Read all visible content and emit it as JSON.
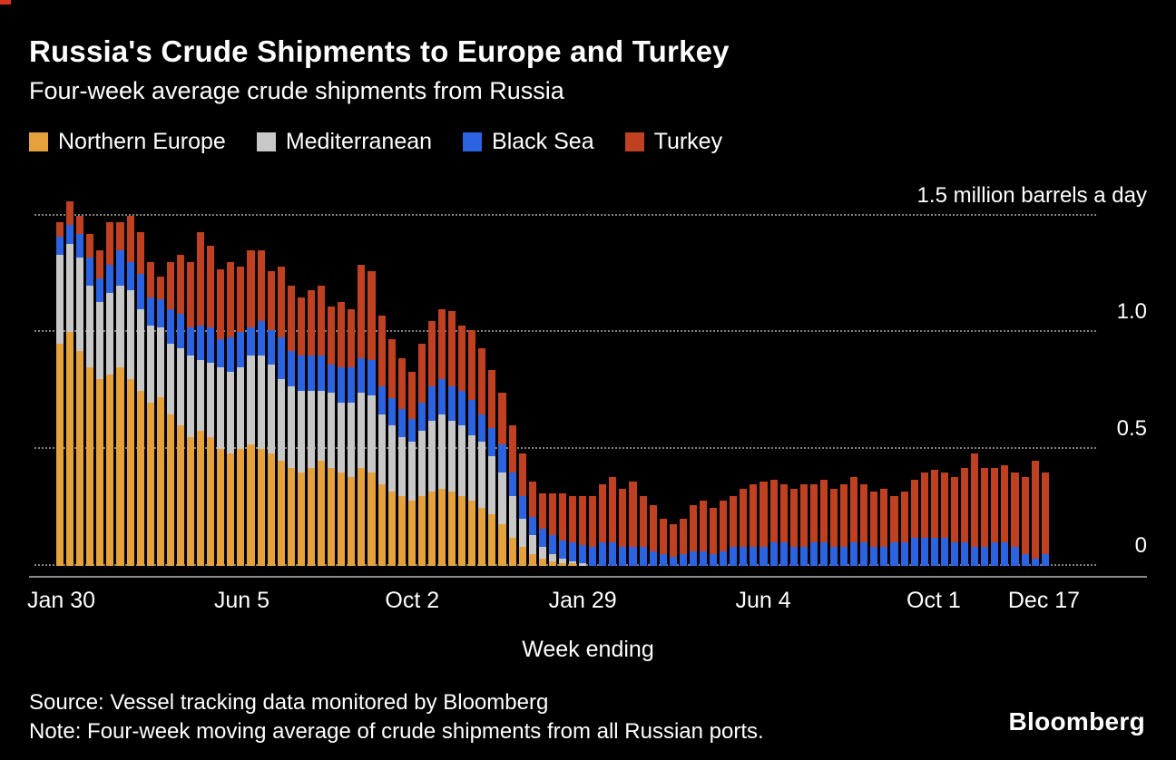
{
  "accent_color": "#d6361f",
  "header": {
    "title": "Russia's Crude Shipments to Europe and Turkey",
    "subtitle": "Four-week average crude shipments from Russia"
  },
  "legend": [
    {
      "label": "Northern Europe",
      "color": "#e5a23c"
    },
    {
      "label": "Mediterranean",
      "color": "#c8c8c8"
    },
    {
      "label": "Black Sea",
      "color": "#2b63e0"
    },
    {
      "label": "Turkey",
      "color": "#c04122"
    }
  ],
  "chart_data": {
    "type": "bar",
    "stacked": true,
    "title": "Russia's Crude Shipments to Europe and Turkey",
    "subtitle": "Four-week average crude shipments from Russia",
    "xlabel": "Week ending",
    "ylabel": "million barrels a day",
    "ylim": [
      0,
      1.65
    ],
    "grid": "dotted-horizontal",
    "legend_position": "top",
    "y_ticks": [
      {
        "value": 1.5,
        "label": "1.5 million barrels a day"
      },
      {
        "value": 1.0,
        "label": "1.0"
      },
      {
        "value": 0.5,
        "label": "0.5"
      },
      {
        "value": 0,
        "label": "0"
      }
    ],
    "x_ticks": [
      {
        "index": 0,
        "label": "Jan 30"
      },
      {
        "index": 18,
        "label": "Jun 5"
      },
      {
        "index": 35,
        "label": "Oct 2"
      },
      {
        "index": 52,
        "label": "Jan 29"
      },
      {
        "index": 70,
        "label": "Jun 4"
      },
      {
        "index": 87,
        "label": "Oct 1"
      },
      {
        "index": 98,
        "label": "Dec 17"
      }
    ],
    "series": [
      {
        "name": "Northern Europe",
        "color": "#e5a23c",
        "values": [
          0.95,
          1.0,
          0.92,
          0.85,
          0.8,
          0.82,
          0.85,
          0.8,
          0.75,
          0.7,
          0.72,
          0.65,
          0.6,
          0.55,
          0.58,
          0.55,
          0.5,
          0.48,
          0.5,
          0.52,
          0.5,
          0.48,
          0.45,
          0.42,
          0.4,
          0.42,
          0.45,
          0.42,
          0.4,
          0.38,
          0.42,
          0.4,
          0.35,
          0.32,
          0.3,
          0.28,
          0.3,
          0.32,
          0.33,
          0.32,
          0.3,
          0.28,
          0.25,
          0.22,
          0.18,
          0.12,
          0.08,
          0.05,
          0.03,
          0.02,
          0.01,
          0.01,
          0,
          0,
          0,
          0,
          0,
          0,
          0,
          0,
          0,
          0,
          0,
          0,
          0,
          0,
          0,
          0,
          0,
          0,
          0,
          0,
          0,
          0,
          0,
          0,
          0,
          0,
          0,
          0,
          0,
          0,
          0,
          0,
          0,
          0,
          0,
          0,
          0,
          0,
          0,
          0,
          0,
          0,
          0,
          0,
          0,
          0,
          0
        ]
      },
      {
        "name": "Mediterranean",
        "color": "#c8c8c8",
        "values": [
          0.38,
          0.38,
          0.4,
          0.35,
          0.33,
          0.35,
          0.35,
          0.38,
          0.35,
          0.33,
          0.3,
          0.3,
          0.33,
          0.35,
          0.3,
          0.32,
          0.35,
          0.35,
          0.35,
          0.38,
          0.4,
          0.38,
          0.35,
          0.35,
          0.35,
          0.33,
          0.3,
          0.32,
          0.3,
          0.32,
          0.32,
          0.33,
          0.3,
          0.28,
          0.25,
          0.25,
          0.28,
          0.3,
          0.32,
          0.3,
          0.3,
          0.28,
          0.28,
          0.25,
          0.22,
          0.18,
          0.12,
          0.08,
          0.05,
          0.03,
          0.02,
          0.01,
          0.01,
          0,
          0,
          0,
          0,
          0,
          0,
          0,
          0,
          0,
          0,
          0,
          0,
          0,
          0,
          0,
          0,
          0,
          0,
          0,
          0,
          0,
          0,
          0,
          0,
          0,
          0,
          0,
          0,
          0,
          0,
          0,
          0,
          0,
          0,
          0,
          0,
          0,
          0,
          0,
          0,
          0,
          0,
          0,
          0,
          0,
          0
        ]
      },
      {
        "name": "Black Sea",
        "color": "#2b63e0",
        "values": [
          0.08,
          0.08,
          0.1,
          0.12,
          0.1,
          0.12,
          0.15,
          0.12,
          0.15,
          0.12,
          0.12,
          0.15,
          0.15,
          0.12,
          0.15,
          0.15,
          0.12,
          0.15,
          0.15,
          0.12,
          0.15,
          0.15,
          0.18,
          0.15,
          0.15,
          0.15,
          0.15,
          0.12,
          0.15,
          0.15,
          0.15,
          0.15,
          0.12,
          0.12,
          0.12,
          0.1,
          0.12,
          0.15,
          0.15,
          0.15,
          0.15,
          0.15,
          0.12,
          0.12,
          0.12,
          0.1,
          0.1,
          0.08,
          0.08,
          0.08,
          0.08,
          0.08,
          0.08,
          0.08,
          0.1,
          0.1,
          0.08,
          0.08,
          0.08,
          0.06,
          0.05,
          0.04,
          0.05,
          0.06,
          0.06,
          0.05,
          0.06,
          0.08,
          0.08,
          0.08,
          0.08,
          0.1,
          0.1,
          0.08,
          0.08,
          0.1,
          0.1,
          0.08,
          0.08,
          0.1,
          0.1,
          0.08,
          0.08,
          0.1,
          0.1,
          0.12,
          0.12,
          0.12,
          0.12,
          0.1,
          0.1,
          0.08,
          0.08,
          0.1,
          0.1,
          0.08,
          0.05,
          0.03,
          0.05
        ]
      },
      {
        "name": "Turkey",
        "color": "#c04122",
        "values": [
          0.06,
          0.1,
          0.08,
          0.1,
          0.12,
          0.18,
          0.12,
          0.2,
          0.18,
          0.15,
          0.1,
          0.2,
          0.25,
          0.28,
          0.4,
          0.35,
          0.3,
          0.32,
          0.28,
          0.33,
          0.3,
          0.25,
          0.3,
          0.28,
          0.25,
          0.28,
          0.3,
          0.25,
          0.28,
          0.25,
          0.4,
          0.38,
          0.3,
          0.25,
          0.22,
          0.2,
          0.25,
          0.28,
          0.3,
          0.32,
          0.28,
          0.3,
          0.28,
          0.25,
          0.22,
          0.2,
          0.18,
          0.15,
          0.15,
          0.18,
          0.2,
          0.2,
          0.21,
          0.22,
          0.25,
          0.28,
          0.25,
          0.28,
          0.22,
          0.2,
          0.15,
          0.14,
          0.15,
          0.2,
          0.22,
          0.2,
          0.22,
          0.22,
          0.25,
          0.27,
          0.28,
          0.27,
          0.25,
          0.25,
          0.27,
          0.25,
          0.27,
          0.25,
          0.27,
          0.28,
          0.25,
          0.24,
          0.25,
          0.2,
          0.22,
          0.25,
          0.28,
          0.29,
          0.28,
          0.28,
          0.32,
          0.4,
          0.34,
          0.32,
          0.33,
          0.32,
          0.33,
          0.42,
          0.35
        ]
      }
    ]
  },
  "footer": {
    "source": "Source: Vessel tracking data monitored by Bloomberg",
    "note": "Note: Four-week moving average of crude shipments from all Russian ports.",
    "brand": "Bloomberg"
  }
}
